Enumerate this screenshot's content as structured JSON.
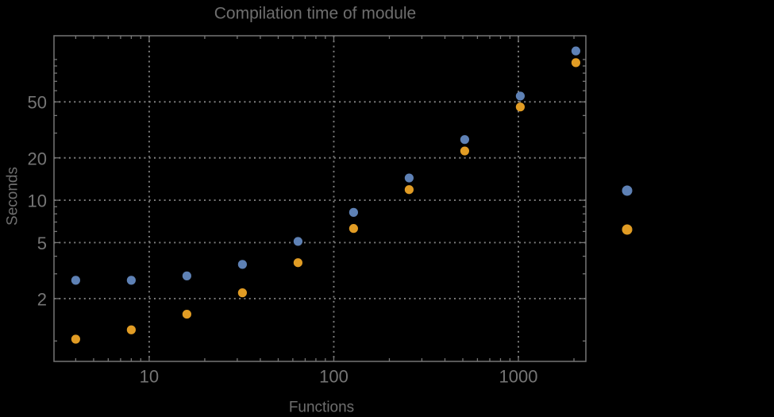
{
  "page": {
    "background": "#000000",
    "frame_color": "#767676",
    "grid_color": "#7f7f7f",
    "text_color": "#757575"
  },
  "chart_data": {
    "type": "scatter",
    "title": "Compilation time of module",
    "xlabel": "Functions",
    "ylabel": "Seconds",
    "x_scale": "log",
    "y_scale": "log",
    "xlim": [
      3.05,
      2320
    ],
    "ylim": [
      0.716,
      147.5
    ],
    "grid": "dotted gridlines at labeled major ticks, frame on all four sides, ticks point inward",
    "x_ticks": {
      "major": [
        {
          "value": 10,
          "label": "10"
        },
        {
          "value": 100,
          "label": "100"
        },
        {
          "value": 1000,
          "label": "1000"
        }
      ],
      "minor": [
        4,
        5,
        6,
        7,
        8,
        9,
        20,
        30,
        40,
        50,
        60,
        70,
        80,
        90,
        200,
        300,
        400,
        500,
        600,
        700,
        800,
        900,
        2000
      ]
    },
    "y_ticks": {
      "major": [
        {
          "value": 2,
          "label": "2"
        },
        {
          "value": 5,
          "label": "5"
        },
        {
          "value": 10,
          "label": "10"
        },
        {
          "value": 20,
          "label": "20"
        },
        {
          "value": 50,
          "label": "50"
        }
      ],
      "minor": [
        1,
        3,
        4,
        6,
        7,
        8,
        9,
        30,
        40,
        60,
        70,
        80,
        90,
        100
      ]
    },
    "x": [
      4,
      8,
      16,
      32,
      64,
      128,
      256,
      512,
      1024,
      2048
    ],
    "series": [
      {
        "color": "#5E81B5",
        "marker": "disk",
        "values": [
          2.7,
          2.7,
          2.9,
          3.5,
          5.1,
          8.2,
          14.4,
          27,
          55,
          115
        ]
      },
      {
        "color": "#E19C24",
        "marker": "disk",
        "values": [
          1.03,
          1.2,
          1.55,
          2.2,
          3.6,
          6.3,
          11.9,
          22.4,
          46,
          95
        ]
      }
    ],
    "legend": {
      "position": "right-outside",
      "labels_visible": false,
      "markers": [
        {
          "color": "#5E81B5"
        },
        {
          "color": "#E19C24"
        }
      ]
    }
  }
}
